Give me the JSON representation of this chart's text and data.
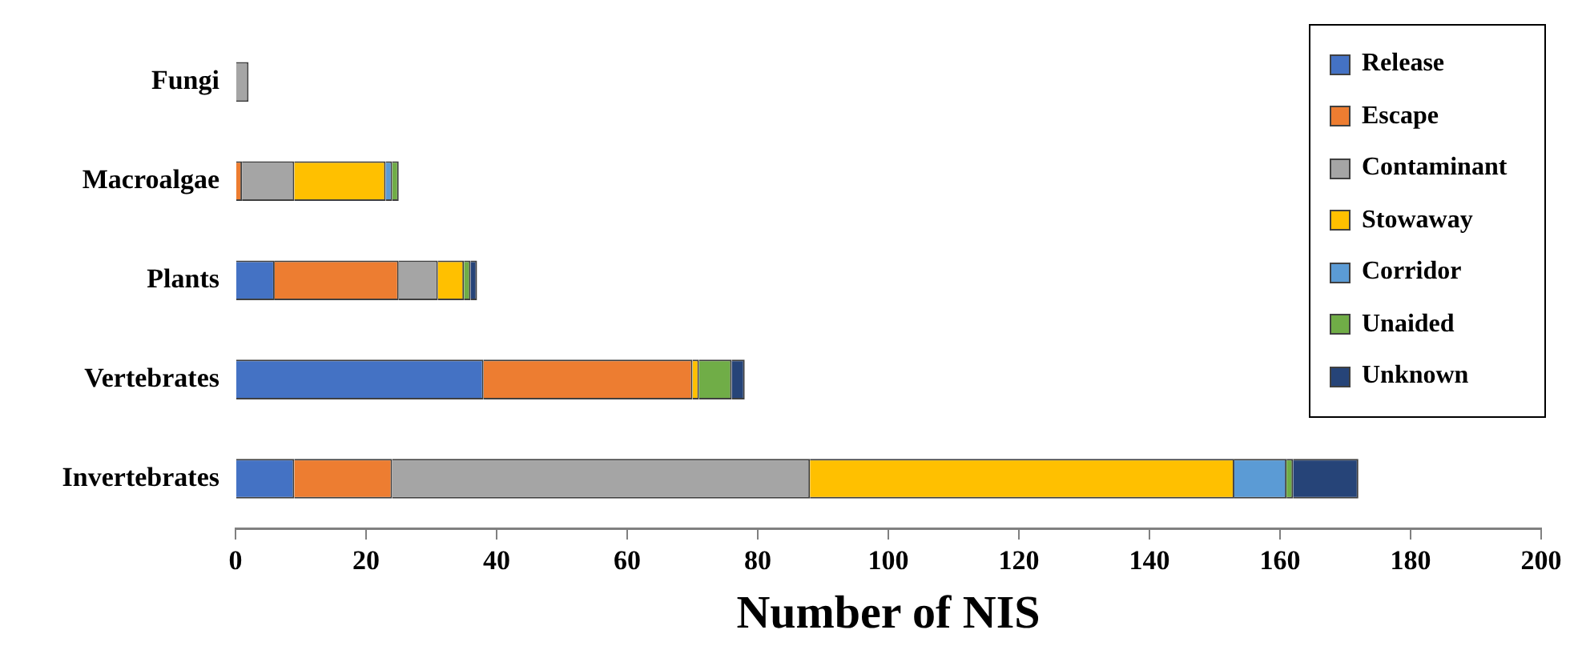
{
  "chart_data": {
    "type": "bar",
    "orientation": "horizontal",
    "stacked": true,
    "xlabel": "Number of NIS",
    "categories": [
      "Fungi",
      "Macroalgae",
      "Plants",
      "Vertebrates",
      "Invertebrates"
    ],
    "series": [
      {
        "name": "Release",
        "color": "#4472c4",
        "values": [
          0,
          0,
          6,
          38,
          9
        ]
      },
      {
        "name": "Escape",
        "color": "#ed7d31",
        "values": [
          0,
          1,
          19,
          32,
          15
        ]
      },
      {
        "name": "Contaminant",
        "color": "#a5a5a5",
        "values": [
          2,
          8,
          6,
          0,
          64
        ]
      },
      {
        "name": "Stowaway",
        "color": "#ffc000",
        "values": [
          0,
          14,
          4,
          1,
          65
        ]
      },
      {
        "name": "Corridor",
        "color": "#5b9bd5",
        "values": [
          0,
          1,
          0,
          0,
          8
        ]
      },
      {
        "name": "Unaided",
        "color": "#70ad47",
        "values": [
          0,
          1,
          1,
          5,
          1
        ]
      },
      {
        "name": "Unknown",
        "color": "#264478",
        "values": [
          0,
          0,
          1,
          2,
          10
        ]
      }
    ],
    "xlim": [
      0,
      200
    ],
    "xticks": [
      0,
      20,
      40,
      60,
      80,
      100,
      120,
      140,
      160,
      180,
      200
    ],
    "grid": false,
    "legend": "top right"
  }
}
